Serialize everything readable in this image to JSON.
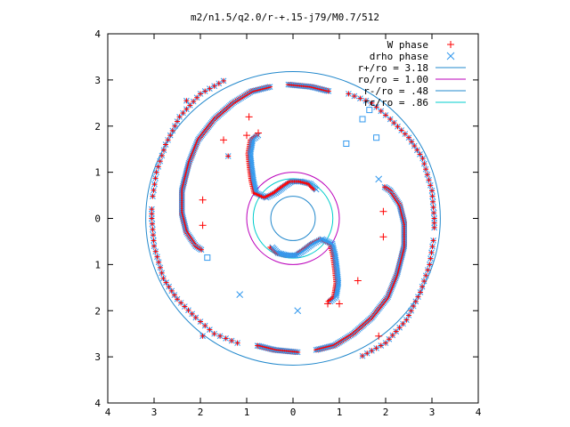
{
  "chart_data": {
    "type": "scatter",
    "title": "m2/n1.5/q2.0/r-+.15-j79/M0.7/512",
    "xlim": [
      -4,
      4
    ],
    "ylim": [
      -4,
      4
    ],
    "x_tick_values": [
      -4,
      -3,
      -2,
      -1,
      0,
      1,
      2,
      3,
      4
    ],
    "x_tick_labels": [
      "4",
      "3",
      "2",
      "1",
      "0",
      "1",
      "2",
      "3",
      "4"
    ],
    "y_tick_values": [
      4,
      3,
      2,
      1,
      0,
      -1,
      -2,
      -3,
      -4
    ],
    "y_tick_labels": [
      "4",
      "3",
      "2",
      "1",
      "0",
      "1",
      "2",
      "3",
      "4"
    ],
    "grid": false,
    "legend_position": "top-right",
    "colors": {
      "red": "#ff0000",
      "blue": "#3399ee",
      "magenta": "#bb00bb",
      "cyan": "#00cccc",
      "circle_blue": "#2288cc"
    },
    "circles": [
      {
        "name": "r+/ro = 3.18",
        "radius": 3.18,
        "color": "#2288cc"
      },
      {
        "name": "ro/ro = 1.00",
        "radius": 1.0,
        "color": "#bb00bb"
      },
      {
        "name": "r-/ro = .48",
        "radius": 0.48,
        "color": "#2288cc"
      },
      {
        "name": "rc/ro = .86",
        "radius": 0.86,
        "color": "#00cccc"
      }
    ],
    "series": [
      {
        "name": "W phase",
        "marker": "plus",
        "color": "#ff0000"
      },
      {
        "name": "drho phase",
        "marker": "cross",
        "color": "#3399ee"
      }
    ],
    "arm_curves": [
      {
        "points": [
          [
            -0.78,
            1.8
          ],
          [
            -0.9,
            1.7
          ],
          [
            -0.95,
            1.4
          ],
          [
            -0.92,
            1.1
          ],
          [
            -0.88,
            0.8
          ],
          [
            -0.82,
            0.55
          ],
          [
            -0.6,
            0.45
          ],
          [
            -0.4,
            0.55
          ],
          [
            -0.2,
            0.7
          ],
          [
            -0.05,
            0.8
          ],
          [
            0.15,
            0.8
          ],
          [
            0.35,
            0.75
          ],
          [
            0.5,
            0.6
          ]
        ],
        "ends": "w"
      },
      {
        "points": [
          [
            0.78,
            -1.8
          ],
          [
            0.9,
            -1.7
          ],
          [
            0.95,
            -1.4
          ],
          [
            0.92,
            -1.1
          ],
          [
            0.88,
            -0.8
          ],
          [
            0.82,
            -0.55
          ],
          [
            0.6,
            -0.45
          ],
          [
            0.4,
            -0.55
          ],
          [
            0.2,
            -0.7
          ],
          [
            0.05,
            -0.8
          ],
          [
            -0.15,
            -0.8
          ],
          [
            -0.35,
            -0.75
          ],
          [
            -0.5,
            -0.6
          ]
        ],
        "ends": "w"
      },
      {
        "points": [
          [
            -0.5,
            2.85
          ],
          [
            -0.9,
            2.75
          ],
          [
            -1.3,
            2.5
          ],
          [
            -1.7,
            2.15
          ],
          [
            -2.05,
            1.7
          ],
          [
            -2.25,
            1.2
          ],
          [
            -2.4,
            0.6
          ],
          [
            -2.4,
            0.1
          ],
          [
            -2.3,
            -0.3
          ],
          [
            -2.1,
            -0.6
          ],
          [
            -1.95,
            -0.7
          ]
        ],
        "ends": "m"
      },
      {
        "points": [
          [
            0.5,
            -2.85
          ],
          [
            0.9,
            -2.75
          ],
          [
            1.3,
            -2.5
          ],
          [
            1.7,
            -2.15
          ],
          [
            2.05,
            -1.7
          ],
          [
            2.25,
            -1.2
          ],
          [
            2.4,
            -0.6
          ],
          [
            2.4,
            -0.1
          ],
          [
            2.3,
            0.3
          ],
          [
            2.1,
            0.6
          ],
          [
            1.95,
            0.7
          ]
        ],
        "ends": "m"
      },
      {
        "points": [
          [
            -0.1,
            2.9
          ],
          [
            0.4,
            2.85
          ],
          [
            0.8,
            2.75
          ]
        ],
        "ends": "m"
      },
      {
        "points": [
          [
            0.1,
            -2.9
          ],
          [
            -0.4,
            -2.85
          ],
          [
            -0.8,
            -2.75
          ]
        ],
        "ends": "m"
      },
      {
        "points": [
          [
            -1.5,
            2.98
          ],
          [
            -2.0,
            2.7
          ],
          [
            -2.45,
            2.2
          ],
          [
            -2.75,
            1.6
          ],
          [
            -2.95,
            1.0
          ],
          [
            -3.05,
            0.35
          ]
        ],
        "ends": "m",
        "sparse": true
      },
      {
        "points": [
          [
            1.5,
            -2.98
          ],
          [
            2.0,
            -2.7
          ],
          [
            2.45,
            -2.2
          ],
          [
            2.75,
            -1.6
          ],
          [
            2.95,
            -1.0
          ],
          [
            3.05,
            -0.35
          ]
        ],
        "ends": "m",
        "sparse": true
      },
      {
        "points": [
          [
            1.2,
            2.7
          ],
          [
            1.7,
            2.5
          ],
          [
            2.1,
            2.15
          ],
          [
            2.5,
            1.75
          ],
          [
            2.8,
            1.3
          ],
          [
            3.0,
            0.6
          ],
          [
            3.05,
            0.0
          ],
          [
            3.05,
            -0.3
          ]
        ],
        "ends": "m",
        "sparse": true
      },
      {
        "points": [
          [
            -1.2,
            -2.7
          ],
          [
            -1.7,
            -2.5
          ],
          [
            -2.1,
            -2.15
          ],
          [
            -2.5,
            -1.75
          ],
          [
            -2.8,
            -1.3
          ],
          [
            -3.0,
            -0.6
          ],
          [
            -3.05,
            0.0
          ],
          [
            -3.05,
            0.3
          ]
        ],
        "ends": "m",
        "sparse": true
      }
    ],
    "isolated_points": [
      {
        "x": -1.0,
        "y": 1.8,
        "m": "w"
      },
      {
        "x": -0.75,
        "y": 1.85,
        "m": "w"
      },
      {
        "x": -1.5,
        "y": 1.7,
        "m": "w"
      },
      {
        "x": -1.95,
        "y": 0.4,
        "m": "w"
      },
      {
        "x": -1.95,
        "y": -0.15,
        "m": "w"
      },
      {
        "x": -1.85,
        "y": -0.85,
        "m": "bs"
      },
      {
        "x": -1.15,
        "y": -1.65,
        "m": "bx"
      },
      {
        "x": -0.95,
        "y": 2.2,
        "m": "w"
      },
      {
        "x": -1.4,
        "y": 1.35,
        "m": "m"
      },
      {
        "x": 1.15,
        "y": 1.62,
        "m": "bs"
      },
      {
        "x": 1.8,
        "y": 1.75,
        "m": "bs"
      },
      {
        "x": 1.5,
        "y": 2.15,
        "m": "bs"
      },
      {
        "x": 1.65,
        "y": 2.35,
        "m": "bs"
      },
      {
        "x": 0.75,
        "y": -1.85,
        "m": "w"
      },
      {
        "x": 1.0,
        "y": -1.85,
        "m": "w"
      },
      {
        "x": 1.4,
        "y": -1.35,
        "m": "w"
      },
      {
        "x": 1.95,
        "y": -0.4,
        "m": "w"
      },
      {
        "x": 1.95,
        "y": 0.15,
        "m": "w"
      },
      {
        "x": 0.1,
        "y": -2.0,
        "m": "bx"
      },
      {
        "x": 1.85,
        "y": 0.85,
        "m": "bx"
      },
      {
        "x": 1.85,
        "y": -2.55,
        "m": "w"
      },
      {
        "x": -2.3,
        "y": 2.55,
        "m": "m"
      },
      {
        "x": -1.95,
        "y": -2.55,
        "m": "m"
      }
    ]
  }
}
